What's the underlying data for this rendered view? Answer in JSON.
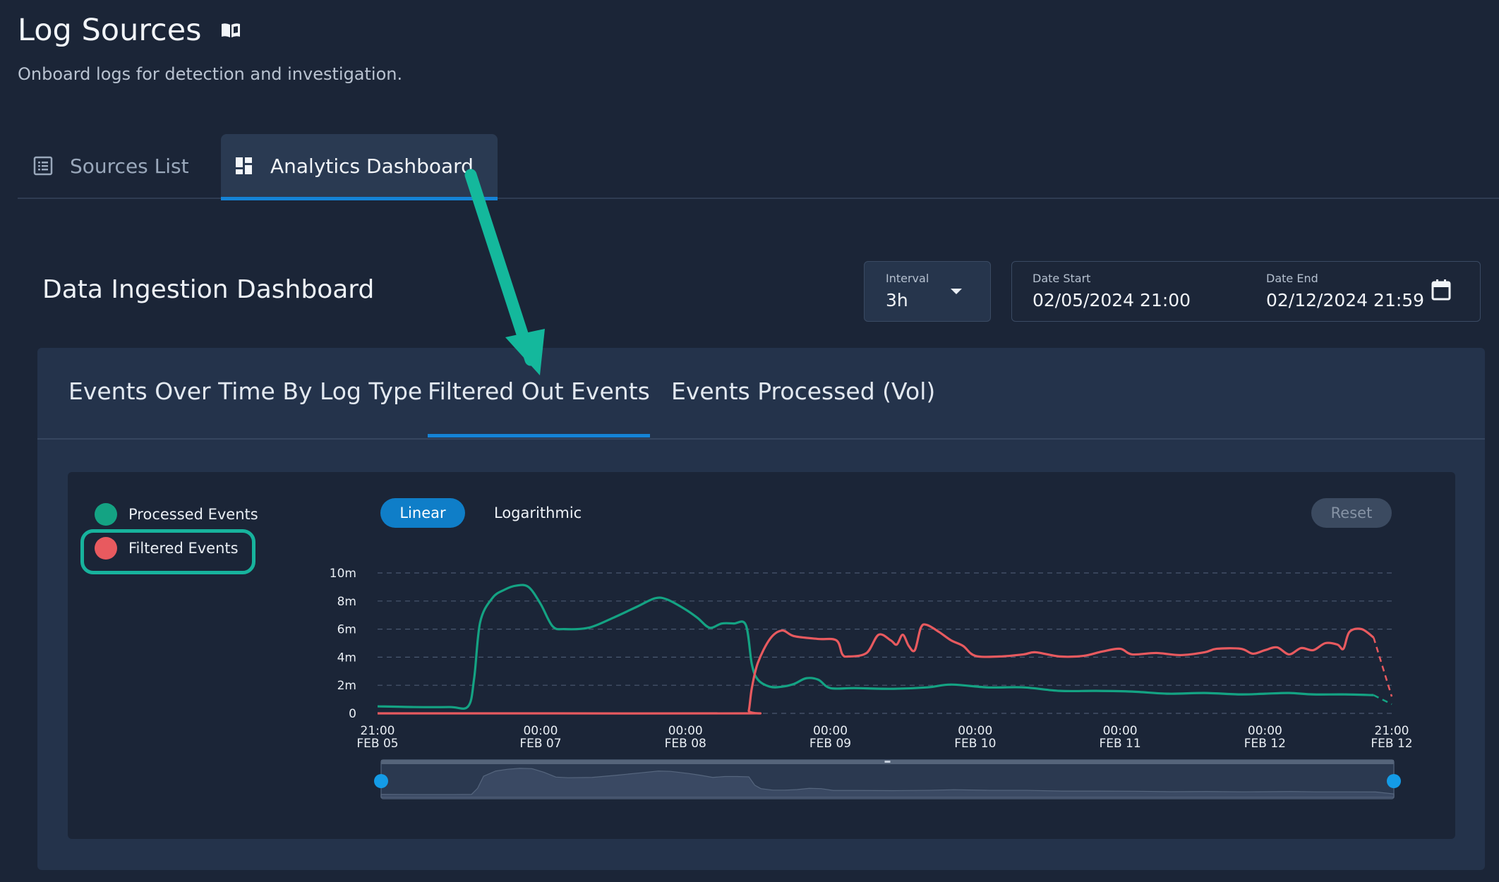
{
  "header": {
    "title": "Log Sources",
    "subtitle": "Onboard logs for detection and investigation."
  },
  "tabs": [
    {
      "label": "Sources List",
      "icon": "list-icon",
      "active": false
    },
    {
      "label": "Analytics Dashboard",
      "icon": "grid-icon",
      "active": true
    }
  ],
  "dashboard": {
    "title": "Data Ingestion Dashboard",
    "interval": {
      "label": "Interval",
      "value": "3h"
    },
    "date_start": {
      "label": "Date Start",
      "value": "02/05/2024 21:00"
    },
    "date_end": {
      "label": "Date End",
      "value": "02/12/2024 21:59"
    }
  },
  "chart_tabs": [
    {
      "label": "Events Over Time By Log Type",
      "active": false
    },
    {
      "label": "Filtered Out Events",
      "active": true
    },
    {
      "label": "Events Processed (Vol)",
      "active": false
    }
  ],
  "controls": {
    "linear": "Linear",
    "logarithmic": "Logarithmic",
    "reset": "Reset",
    "scale": "linear"
  },
  "colors": {
    "processed": "#14a383",
    "filtered": "#e85a5f",
    "accent": "#1583d6",
    "annotation": "#14b89c"
  },
  "chart_data": {
    "type": "line",
    "legend_position": "left",
    "grid": true,
    "ylim": [
      0,
      10000000
    ],
    "y_ticks": [
      "0",
      "2m",
      "4m",
      "6m",
      "8m",
      "10m"
    ],
    "x_ticks": [
      {
        "t": 0,
        "top": "21:00",
        "bottom": "FEB 05"
      },
      {
        "t": 27,
        "top": "00:00",
        "bottom": "FEB 07"
      },
      {
        "t": 51,
        "top": "00:00",
        "bottom": "FEB 08"
      },
      {
        "t": 75,
        "top": "00:00",
        "bottom": "FEB 09"
      },
      {
        "t": 99,
        "top": "00:00",
        "bottom": "FEB 10"
      },
      {
        "t": 123,
        "top": "00:00",
        "bottom": "FEB 11"
      },
      {
        "t": 147,
        "top": "00:00",
        "bottom": "FEB 12"
      },
      {
        "t": 168,
        "top": "21:00",
        "bottom": "FEB 12"
      }
    ],
    "x_unit": "hours since 02/05 21:00",
    "series": [
      {
        "name": "Processed Events",
        "points": [
          [
            0,
            0.5
          ],
          [
            6,
            0.45
          ],
          [
            12,
            0.45
          ],
          [
            15,
            0.5
          ],
          [
            16,
            2.5
          ],
          [
            17,
            6.5
          ],
          [
            19,
            8.2
          ],
          [
            21,
            8.8
          ],
          [
            23,
            9.1
          ],
          [
            25,
            9.0
          ],
          [
            27,
            7.8
          ],
          [
            29,
            6.2
          ],
          [
            31,
            6.0
          ],
          [
            35,
            6.1
          ],
          [
            39,
            6.8
          ],
          [
            43,
            7.6
          ],
          [
            46,
            8.2
          ],
          [
            48,
            8.1
          ],
          [
            51,
            7.4
          ],
          [
            53,
            6.8
          ],
          [
            55,
            6.1
          ],
          [
            57,
            6.4
          ],
          [
            59,
            6.4
          ],
          [
            61,
            6.3
          ],
          [
            62,
            3.5
          ],
          [
            63,
            2.4
          ],
          [
            65,
            1.9
          ],
          [
            67,
            1.9
          ],
          [
            69,
            2.1
          ],
          [
            71,
            2.5
          ],
          [
            73,
            2.4
          ],
          [
            75,
            1.8
          ],
          [
            79,
            1.8
          ],
          [
            85,
            1.75
          ],
          [
            91,
            1.85
          ],
          [
            95,
            2.05
          ],
          [
            101,
            1.85
          ],
          [
            107,
            1.85
          ],
          [
            113,
            1.6
          ],
          [
            119,
            1.6
          ],
          [
            125,
            1.55
          ],
          [
            131,
            1.4
          ],
          [
            137,
            1.45
          ],
          [
            143,
            1.35
          ],
          [
            147,
            1.4
          ],
          [
            151,
            1.45
          ],
          [
            155,
            1.35
          ],
          [
            160,
            1.35
          ],
          [
            165,
            1.3
          ]
        ],
        "dashed_tail": [
          [
            165,
            1.3
          ],
          [
            168,
            0.65
          ]
        ]
      },
      {
        "name": "Filtered Events",
        "points": [
          [
            0,
            0
          ],
          [
            30,
            0
          ],
          [
            61,
            0
          ],
          [
            61.5,
            0.2
          ],
          [
            62,
            1.8
          ],
          [
            63,
            3.6
          ],
          [
            65,
            5.3
          ],
          [
            67,
            5.9
          ],
          [
            69,
            5.5
          ],
          [
            73,
            5.3
          ],
          [
            76,
            5.2
          ],
          [
            77,
            4.2
          ],
          [
            78,
            4.05
          ],
          [
            81,
            4.3
          ],
          [
            83,
            5.6
          ],
          [
            85,
            5.2
          ],
          [
            86,
            4.9
          ],
          [
            87,
            5.6
          ],
          [
            88,
            4.8
          ],
          [
            89,
            4.5
          ],
          [
            90,
            6.1
          ],
          [
            91,
            6.3
          ],
          [
            93,
            5.8
          ],
          [
            95,
            5.2
          ],
          [
            97,
            4.8
          ],
          [
            99,
            4.1
          ],
          [
            103,
            4.05
          ],
          [
            107,
            4.2
          ],
          [
            109,
            4.35
          ],
          [
            113,
            4.05
          ],
          [
            117,
            4.1
          ],
          [
            120,
            4.4
          ],
          [
            123,
            4.6
          ],
          [
            125,
            4.2
          ],
          [
            129,
            4.3
          ],
          [
            133,
            4.15
          ],
          [
            137,
            4.35
          ],
          [
            139,
            4.6
          ],
          [
            143,
            4.6
          ],
          [
            145,
            4.25
          ],
          [
            147,
            4.5
          ],
          [
            149,
            4.7
          ],
          [
            151,
            4.2
          ],
          [
            153,
            4.65
          ],
          [
            155,
            4.5
          ],
          [
            157,
            5.0
          ],
          [
            159,
            4.9
          ],
          [
            160,
            4.6
          ],
          [
            161,
            5.8
          ],
          [
            163,
            6.0
          ],
          [
            165,
            5.4
          ]
        ],
        "dashed_tail": [
          [
            165,
            5.4
          ],
          [
            168,
            1.2
          ]
        ]
      }
    ]
  }
}
